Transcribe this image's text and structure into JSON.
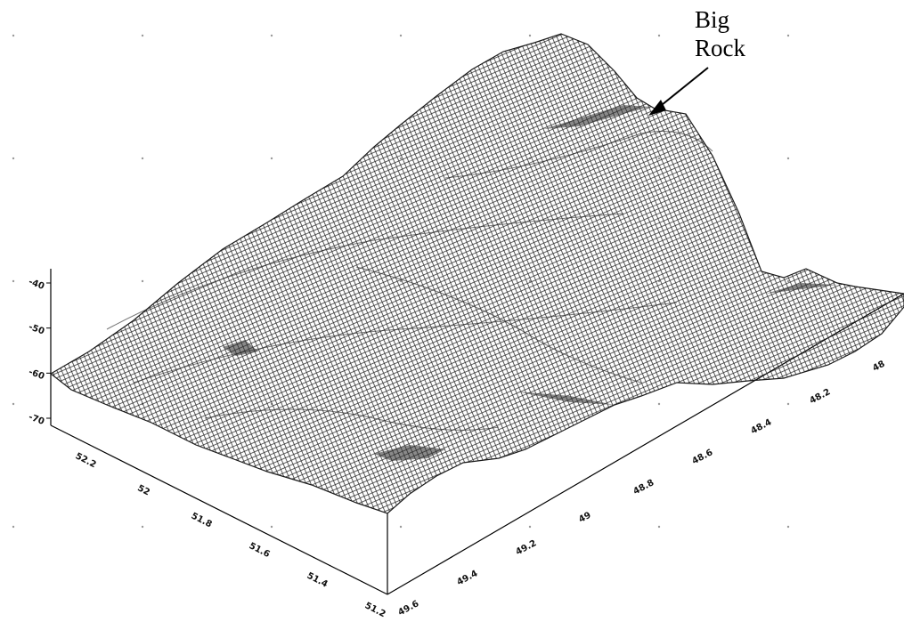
{
  "chart_data": {
    "type": "surface",
    "title": "",
    "annotation": {
      "line1": "Big",
      "line2": "Rock"
    },
    "z_axis": {
      "ticks": [
        "-40",
        "-50",
        "-60",
        "-70"
      ],
      "range": [
        -70,
        -40
      ]
    },
    "x_axis": {
      "ticks": [
        "49.6",
        "49.4",
        "49.2",
        "49",
        "48.8",
        "48.6",
        "48.4",
        "48.2",
        "48"
      ],
      "range": [
        48,
        49.6
      ]
    },
    "y_axis": {
      "ticks": [
        "51.2",
        "51.4",
        "51.6",
        "51.8",
        "52",
        "52.2"
      ],
      "range": [
        51.2,
        52.2
      ]
    },
    "grid": true,
    "colors": {
      "mesh": "#1a1a1a",
      "background": "#ffffff",
      "axis": "#000000"
    }
  }
}
